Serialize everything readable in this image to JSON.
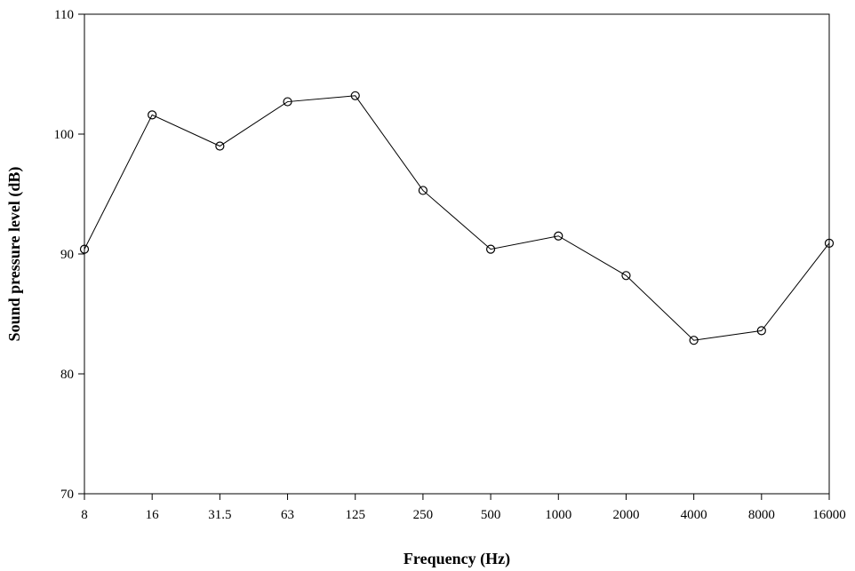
{
  "chart_data": {
    "type": "line",
    "title": "",
    "xlabel": "Frequency (Hz)",
    "ylabel": "Sound pressure level (dB)",
    "categories": [
      "8",
      "16",
      "31.5",
      "63",
      "125",
      "250",
      "500",
      "1000",
      "2000",
      "4000",
      "8000",
      "16000"
    ],
    "series": [
      {
        "values": [
          90.4,
          101.6,
          99.0,
          102.7,
          103.2,
          95.3,
          90.4,
          91.5,
          88.2,
          82.8,
          83.6,
          90.9
        ],
        "marker": "open-circle",
        "color": "#000000"
      }
    ],
    "ylim": [
      70,
      110
    ],
    "yticks": [
      70,
      80,
      90,
      100,
      110
    ],
    "grid": false,
    "legend": false
  }
}
